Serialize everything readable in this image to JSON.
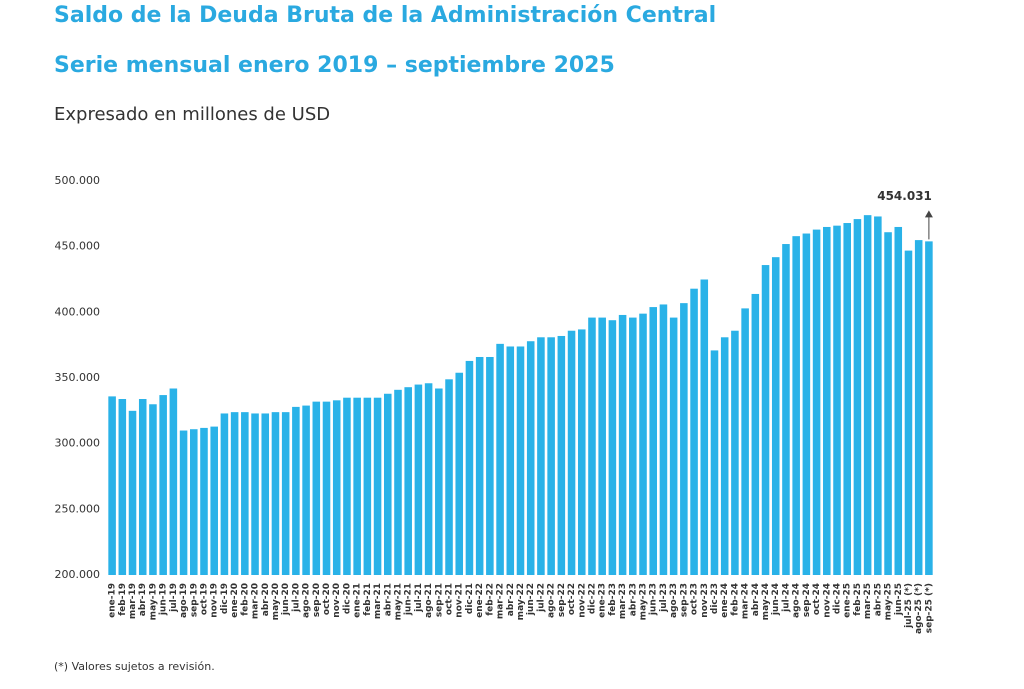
{
  "chart_data": {
    "type": "bar",
    "title": "Saldo de la Deuda Bruta de la Administración Central",
    "subtitle": "Serie mensual enero 2019 – septiembre 2025",
    "unit_label": "Expresado en millones de USD",
    "footnote": "(*) Valores sujetos a revisión.",
    "color": "#29b2e8",
    "categories": [
      "ene-19",
      "feb-19",
      "mar-19",
      "abr-19",
      "may-19",
      "jun-19",
      "jul-19",
      "ago-19",
      "sep-19",
      "oct-19",
      "nov-19",
      "dic-19",
      "ene-20",
      "feb-20",
      "mar-20",
      "abr-20",
      "may-20",
      "jun-20",
      "jul-20",
      "ago-20",
      "sep-20",
      "oct-20",
      "nov-20",
      "dic-20",
      "ene-21",
      "feb-21",
      "mar-21",
      "abr-21",
      "may-21",
      "jun-21",
      "jul-21",
      "ago-21",
      "sep-21",
      "oct-21",
      "nov-21",
      "dic-21",
      "ene-22",
      "feb-22",
      "mar-22",
      "abr-22",
      "may-22",
      "jun-22",
      "jul-22",
      "ago-22",
      "sep-22",
      "oct-22",
      "nov-22",
      "dic-22",
      "ene-23",
      "feb-23",
      "mar-23",
      "abr-23",
      "may-23",
      "jun-23",
      "jul-23",
      "ago-23",
      "sep-23",
      "oct-23",
      "nov-23",
      "dic-23",
      "ene-24",
      "feb-24",
      "mar-24",
      "abr-24",
      "may-24",
      "jun-24",
      "jul-24",
      "ago-24",
      "sep-24",
      "oct-24",
      "nov-24",
      "dic-24",
      "ene-25",
      "feb-25",
      "mar-25",
      "abr-25",
      "may-25",
      "jun-25",
      "jul-25 (*)",
      "ago-25 (*)",
      "sep-25 (*)"
    ],
    "values": [
      336000,
      334000,
      325000,
      334000,
      330000,
      337000,
      342000,
      310000,
      311000,
      312000,
      313000,
      323000,
      324000,
      324000,
      323000,
      323000,
      324000,
      324000,
      328000,
      329000,
      332000,
      332000,
      333000,
      335000,
      335000,
      335000,
      335000,
      338000,
      341000,
      343000,
      345000,
      346000,
      342000,
      349000,
      354000,
      363000,
      366000,
      366000,
      376000,
      374000,
      374000,
      378000,
      381000,
      381000,
      382000,
      386000,
      387000,
      396000,
      396000,
      394000,
      398000,
      396000,
      399000,
      404000,
      406000,
      396000,
      407000,
      418000,
      425000,
      371000,
      381000,
      386000,
      403000,
      414000,
      436000,
      442000,
      452000,
      458000,
      460000,
      463000,
      465000,
      466000,
      468000,
      471000,
      474000,
      473000,
      461000,
      465000,
      447000,
      455000,
      454031
    ],
    "value_labels": [
      null,
      null,
      null,
      null,
      null,
      null,
      null,
      null,
      null,
      null,
      null,
      null,
      null,
      null,
      null,
      null,
      null,
      null,
      null,
      null,
      null,
      null,
      null,
      null,
      null,
      null,
      null,
      null,
      null,
      null,
      null,
      null,
      null,
      null,
      null,
      null,
      null,
      null,
      null,
      null,
      null,
      null,
      null,
      null,
      null,
      null,
      null,
      null,
      null,
      null,
      null,
      null,
      null,
      null,
      null,
      null,
      null,
      null,
      null,
      null,
      null,
      null,
      null,
      null,
      null,
      null,
      null,
      null,
      null,
      null,
      null,
      null,
      null,
      null,
      null,
      null,
      null,
      null,
      null,
      null,
      "454.031"
    ],
    "ylim": [
      200000,
      500000
    ],
    "yticks": [
      {
        "value": 200000,
        "label": "200.000"
      },
      {
        "value": 250000,
        "label": "250.000"
      },
      {
        "value": 300000,
        "label": "300.000"
      },
      {
        "value": 350000,
        "label": "350.000"
      },
      {
        "value": 400000,
        "label": "400.000"
      },
      {
        "value": 450000,
        "label": "450.000"
      },
      {
        "value": 500000,
        "label": "500.000"
      }
    ],
    "grid": false
  }
}
